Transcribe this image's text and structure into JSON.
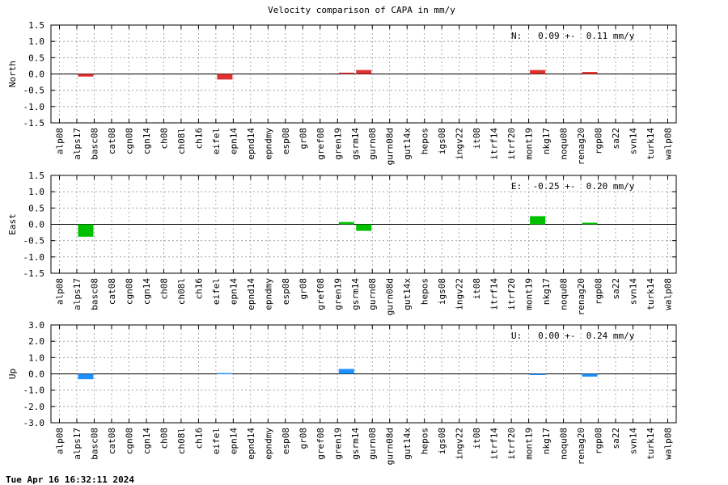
{
  "title": "Velocity comparison of CAPA in mm/y",
  "footer": "Tue Apr 16 16:32:11 2024",
  "chart_data": [
    {
      "type": "bar",
      "ylabel": "North",
      "ylim": [
        -1.5,
        1.5
      ],
      "yticks": [
        "-1.5",
        "-1.0",
        "-0.5",
        "0.0",
        "0.5",
        "1.0",
        "1.5"
      ],
      "grid": true,
      "color": "#e03030",
      "annotation": "N:   0.09 +-  0.11 mm/y",
      "categories": [
        "alp08",
        "alps17",
        "basc08",
        "cat08",
        "cgn08",
        "cgn14",
        "ch08",
        "ch08l",
        "ch16",
        "eifel",
        "epn14",
        "epnd14",
        "epndmy",
        "esp08",
        "gr08",
        "gref08",
        "gren19",
        "gsrm14",
        "gurn08",
        "gurn08d",
        "gut14x",
        "hepos",
        "igs08",
        "ingv22",
        "it08",
        "itrf14",
        "itrf20",
        "mont19",
        "nkg17",
        "noqu08",
        "renag20",
        "rgp08",
        "sa22",
        "svn14",
        "turk14",
        "walp08"
      ],
      "values": [
        0,
        -0.08,
        0,
        0,
        0,
        0,
        0,
        0,
        0,
        -0.17,
        0,
        0,
        0,
        0,
        0,
        0,
        0.04,
        0.12,
        0,
        0,
        0,
        0,
        0,
        0,
        0,
        0,
        0,
        0.12,
        0,
        0,
        0.06,
        0,
        0,
        0,
        0,
        0
      ]
    },
    {
      "type": "bar",
      "ylabel": "East",
      "ylim": [
        -1.5,
        1.5
      ],
      "yticks": [
        "-1.5",
        "-1.0",
        "-0.5",
        "0.0",
        "0.5",
        "1.0",
        "1.5"
      ],
      "grid": true,
      "color": "#00c000",
      "annotation": "E:  -0.25 +-  0.20 mm/y",
      "categories": [
        "alp08",
        "alps17",
        "basc08",
        "cat08",
        "cgn08",
        "cgn14",
        "ch08",
        "ch08l",
        "ch16",
        "eifel",
        "epn14",
        "epnd14",
        "epndmy",
        "esp08",
        "gr08",
        "gref08",
        "gren19",
        "gsrm14",
        "gurn08",
        "gurn08d",
        "gut14x",
        "hepos",
        "igs08",
        "ingv22",
        "it08",
        "itrf14",
        "itrf20",
        "mont19",
        "nkg17",
        "noqu08",
        "renag20",
        "rgp08",
        "sa22",
        "svn14",
        "turk14",
        "walp08"
      ],
      "values": [
        0,
        -0.38,
        0,
        0,
        0,
        0,
        0,
        0,
        0,
        0,
        0,
        0,
        0,
        0,
        0,
        0,
        0.07,
        -0.2,
        0,
        0,
        0,
        0,
        0,
        0,
        0,
        0,
        0,
        0.25,
        0,
        0,
        0.05,
        0,
        0,
        0,
        0,
        0
      ]
    },
    {
      "type": "bar",
      "ylabel": "Up",
      "ylim": [
        -3.0,
        3.0
      ],
      "yticks": [
        "-3.0",
        "-2.0",
        "-1.0",
        "0.0",
        "1.0",
        "2.0",
        "3.0"
      ],
      "grid": true,
      "color": "#1e90ff",
      "annotation": "U:   0.00 +-  0.24 mm/y",
      "categories": [
        "alp08",
        "alps17",
        "basc08",
        "cat08",
        "cgn08",
        "cgn14",
        "ch08",
        "ch08l",
        "ch16",
        "eifel",
        "epn14",
        "epnd14",
        "epndmy",
        "esp08",
        "gr08",
        "gref08",
        "gren19",
        "gsrm14",
        "gurn08",
        "gurn08d",
        "gut14x",
        "hepos",
        "igs08",
        "ingv22",
        "it08",
        "itrf14",
        "itrf20",
        "mont19",
        "nkg17",
        "noqu08",
        "renag20",
        "rgp08",
        "sa22",
        "svn14",
        "turk14",
        "walp08"
      ],
      "values": [
        0,
        -0.33,
        0,
        0,
        0,
        0,
        0,
        0,
        0,
        0.05,
        0,
        0,
        0,
        0,
        0,
        0,
        0.3,
        0,
        0,
        0,
        0,
        0,
        0,
        0,
        0,
        0,
        0,
        -0.05,
        0,
        0,
        -0.17,
        0,
        0,
        0,
        0,
        0
      ]
    }
  ]
}
